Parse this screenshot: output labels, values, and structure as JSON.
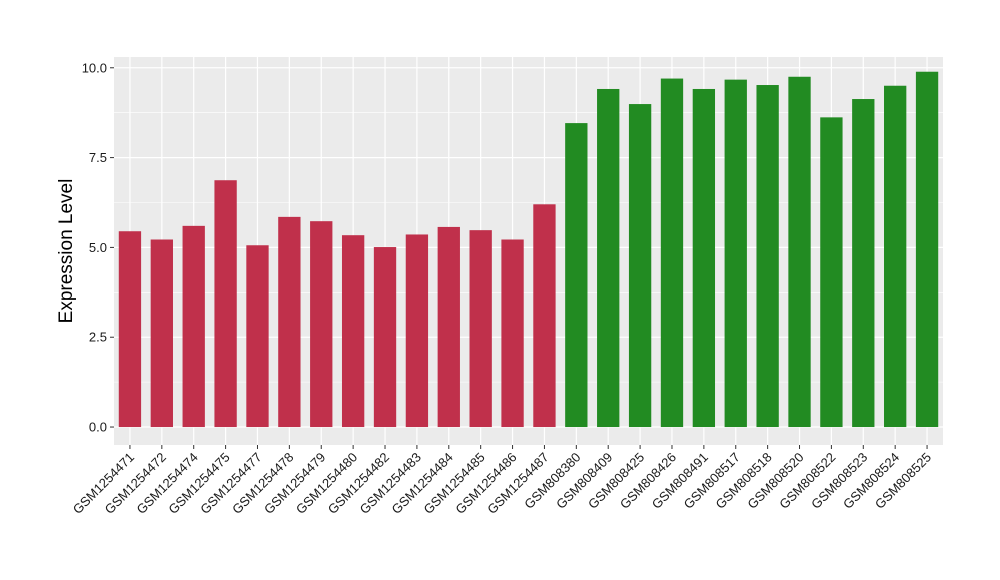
{
  "chart_data": {
    "type": "bar",
    "title": "",
    "xlabel": "",
    "ylabel": "Expression Level",
    "ylim": [
      -0.5,
      10.3
    ],
    "yticks": [
      0.0,
      2.5,
      5.0,
      7.5,
      10.0
    ],
    "ytick_labels": [
      "0.0",
      "2.5",
      "5.0",
      "7.5",
      "10.0"
    ],
    "grid": true,
    "panel_background": "#ebebeb",
    "grid_color": "#ffffff",
    "categories": [
      "GSM1254471",
      "GSM1254472",
      "GSM1254474",
      "GSM1254475",
      "GSM1254477",
      "GSM1254478",
      "GSM1254479",
      "GSM1254480",
      "GSM1254482",
      "GSM1254483",
      "GSM1254484",
      "GSM1254485",
      "GSM1254486",
      "GSM1254487",
      "GSM808380",
      "GSM808409",
      "GSM808425",
      "GSM808426",
      "GSM808491",
      "GSM808517",
      "GSM808518",
      "GSM808520",
      "GSM808522",
      "GSM808523",
      "GSM808524",
      "GSM808525"
    ],
    "values": [
      5.45,
      5.22,
      5.6,
      6.87,
      5.06,
      5.85,
      5.73,
      5.34,
      5.01,
      5.36,
      5.57,
      5.48,
      5.22,
      6.2,
      8.46,
      9.41,
      8.99,
      9.7,
      9.41,
      9.67,
      9.52,
      9.75,
      8.62,
      9.13,
      9.5,
      9.89
    ],
    "colors": [
      "#c0304b",
      "#c0304b",
      "#c0304b",
      "#c0304b",
      "#c0304b",
      "#c0304b",
      "#c0304b",
      "#c0304b",
      "#c0304b",
      "#c0304b",
      "#c0304b",
      "#c0304b",
      "#c0304b",
      "#c0304b",
      "#228b22",
      "#228b22",
      "#228b22",
      "#228b22",
      "#228b22",
      "#228b22",
      "#228b22",
      "#228b22",
      "#228b22",
      "#228b22",
      "#228b22",
      "#228b22"
    ]
  }
}
